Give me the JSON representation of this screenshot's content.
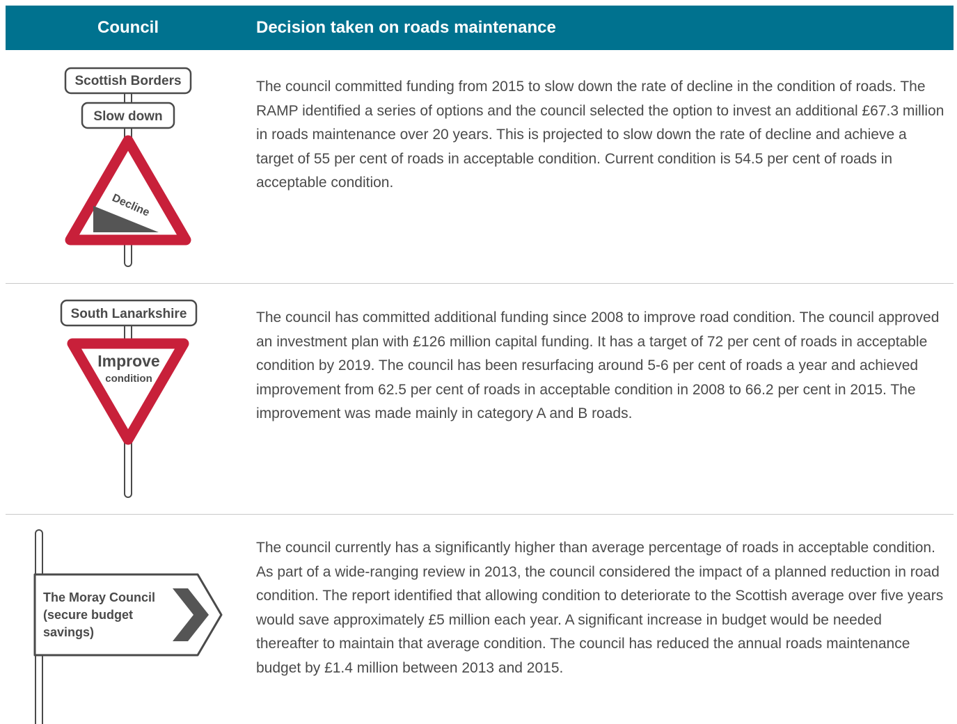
{
  "header": {
    "council": "Council",
    "decision": "Decision taken on roads maintenance"
  },
  "rows": [
    {
      "sign": {
        "name": "Scottish Borders",
        "plate": "Slow down",
        "symbol": "Decline"
      },
      "text": "The council committed funding from 2015 to slow down the rate of decline in the condition of roads. The RAMP identified a series of options and the council selected the option to invest an additional £67.3 million in roads maintenance over 20 years. This is projected to slow down the rate of decline and achieve a target of 55 per cent of roads in acceptable condition. Current condition is 54.5 per cent of roads in acceptable condition."
    },
    {
      "sign": {
        "name": "South Lanarkshire",
        "plate": "Improve",
        "symbol": "condition"
      },
      "text": "The council has committed additional funding since 2008 to improve road condition. The council approved an investment plan with £126 million capital funding. It has a target of 72 per cent of roads in acceptable condition by 2019. The council has been resurfacing around 5-6 per cent of roads a year and achieved improvement from 62.5 per cent of roads in acceptable condition in 2008 to 66.2 per cent in 2015. The improvement was made mainly in category A and B roads."
    },
    {
      "sign": {
        "lines": [
          "The Moray Council",
          "(secure budget",
          "savings)"
        ]
      },
      "text": "The council currently has a significantly higher than average percentage of roads in acceptable condition. As part of a wide-ranging review in 2013, the council considered the impact of a planned reduction in road condition. The report identified that allowing condition to deteriorate to the Scottish average over five years would save approximately £5 million each year. A significant increase in budget would be needed thereafter to maintain that average condition. The council has reduced the annual roads maintenance budget by £1.4 million between 2013 and 2015."
    }
  ]
}
